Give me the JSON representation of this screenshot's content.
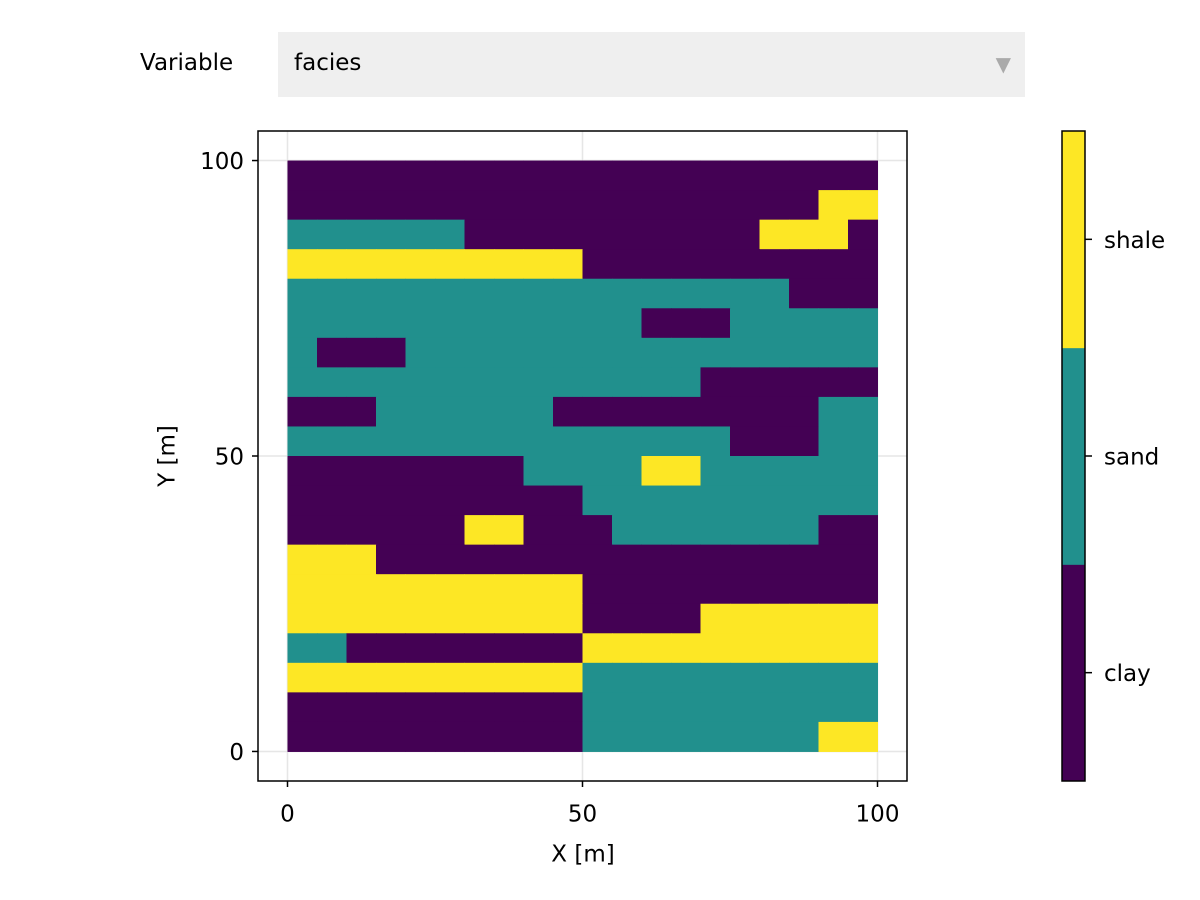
{
  "controls": {
    "label": "Variable",
    "value": "facies"
  },
  "chart_data": {
    "type": "heatmap",
    "xlabel": "X [m]",
    "ylabel": "Y [m]",
    "xlim": [
      -5,
      105
    ],
    "ylim": [
      -5,
      105
    ],
    "xticks": [
      0,
      50,
      100
    ],
    "yticks": [
      0,
      50,
      100
    ],
    "grid": true,
    "x_edges": [
      0,
      5,
      10,
      15,
      20,
      25,
      30,
      35,
      40,
      45,
      50,
      55,
      60,
      65,
      70,
      75,
      80,
      85,
      90,
      95,
      100
    ],
    "y_edges": [
      100,
      95,
      90,
      85,
      80,
      75,
      70,
      65,
      60,
      55,
      50,
      45,
      40,
      35,
      30,
      25,
      20,
      15,
      10,
      5,
      0
    ],
    "categories": [
      "clay",
      "sand",
      "shale"
    ],
    "colors": [
      "#440154",
      "#21908d",
      "#fde725"
    ],
    "z": [
      [
        0,
        0,
        0,
        0,
        0,
        0,
        0,
        0,
        0,
        0,
        0,
        0,
        0,
        0,
        0,
        0,
        0,
        0,
        0,
        0
      ],
      [
        0,
        0,
        0,
        0,
        0,
        0,
        0,
        0,
        0,
        0,
        0,
        0,
        0,
        0,
        0,
        0,
        0,
        0,
        2,
        2
      ],
      [
        1,
        1,
        1,
        1,
        1,
        1,
        0,
        0,
        0,
        0,
        0,
        0,
        0,
        0,
        0,
        0,
        2,
        2,
        2,
        0
      ],
      [
        2,
        2,
        2,
        2,
        2,
        2,
        2,
        2,
        2,
        2,
        0,
        0,
        0,
        0,
        0,
        0,
        0,
        0,
        0,
        0
      ],
      [
        1,
        1,
        1,
        1,
        1,
        1,
        1,
        1,
        1,
        1,
        1,
        1,
        1,
        1,
        1,
        1,
        1,
        0,
        0,
        0
      ],
      [
        1,
        1,
        1,
        1,
        1,
        1,
        1,
        1,
        1,
        1,
        1,
        1,
        0,
        0,
        0,
        1,
        1,
        1,
        1,
        1
      ],
      [
        1,
        0,
        0,
        0,
        1,
        1,
        1,
        1,
        1,
        1,
        1,
        1,
        1,
        1,
        1,
        1,
        1,
        1,
        1,
        1
      ],
      [
        1,
        1,
        1,
        1,
        1,
        1,
        1,
        1,
        1,
        1,
        1,
        1,
        1,
        1,
        0,
        0,
        0,
        0,
        0,
        0
      ],
      [
        0,
        0,
        0,
        1,
        1,
        1,
        1,
        1,
        1,
        0,
        0,
        0,
        0,
        0,
        0,
        0,
        0,
        0,
        1,
        1
      ],
      [
        1,
        1,
        1,
        1,
        1,
        1,
        1,
        1,
        1,
        1,
        1,
        1,
        1,
        1,
        1,
        0,
        0,
        0,
        1,
        1
      ],
      [
        0,
        0,
        0,
        0,
        0,
        0,
        0,
        0,
        1,
        1,
        1,
        1,
        2,
        2,
        1,
        1,
        1,
        1,
        1,
        1
      ],
      [
        0,
        0,
        0,
        0,
        0,
        0,
        0,
        0,
        0,
        0,
        1,
        1,
        1,
        1,
        1,
        1,
        1,
        1,
        1,
        1
      ],
      [
        0,
        0,
        0,
        0,
        0,
        0,
        2,
        2,
        0,
        0,
        0,
        1,
        1,
        1,
        1,
        1,
        1,
        1,
        0,
        0
      ],
      [
        2,
        2,
        2,
        0,
        0,
        0,
        0,
        0,
        0,
        0,
        0,
        0,
        0,
        0,
        0,
        0,
        0,
        0,
        0,
        0
      ],
      [
        2,
        2,
        2,
        2,
        2,
        2,
        2,
        2,
        2,
        2,
        0,
        0,
        0,
        0,
        0,
        0,
        0,
        0,
        0,
        0
      ],
      [
        2,
        2,
        2,
        2,
        2,
        2,
        2,
        2,
        2,
        2,
        0,
        0,
        0,
        0,
        2,
        2,
        2,
        2,
        2,
        2
      ],
      [
        1,
        1,
        0,
        0,
        0,
        0,
        0,
        0,
        0,
        0,
        2,
        2,
        2,
        2,
        2,
        2,
        2,
        2,
        2,
        2
      ],
      [
        2,
        2,
        2,
        2,
        2,
        2,
        2,
        2,
        2,
        2,
        1,
        1,
        1,
        1,
        1,
        1,
        1,
        1,
        1,
        1
      ],
      [
        0,
        0,
        0,
        0,
        0,
        0,
        0,
        0,
        0,
        0,
        1,
        1,
        1,
        1,
        1,
        1,
        1,
        1,
        1,
        1
      ],
      [
        0,
        0,
        0,
        0,
        0,
        0,
        0,
        0,
        0,
        0,
        1,
        1,
        1,
        1,
        1,
        1,
        1,
        1,
        2,
        2
      ]
    ]
  }
}
